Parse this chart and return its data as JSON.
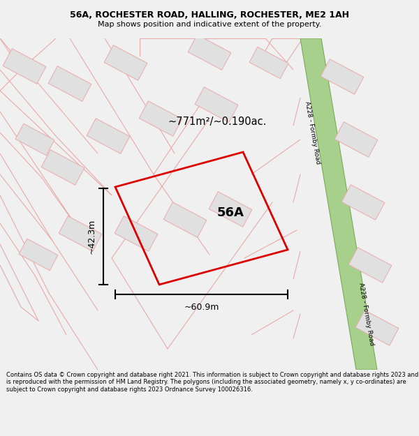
{
  "title_line1": "56A, ROCHESTER ROAD, HALLING, ROCHESTER, ME2 1AH",
  "title_line2": "Map shows position and indicative extent of the property.",
  "footer_text": "Contains OS data © Crown copyright and database right 2021. This information is subject to Crown copyright and database rights 2023 and is reproduced with the permission of HM Land Registry. The polygons (including the associated geometry, namely x, y co-ordinates) are subject to Crown copyright and database rights 2023 Ordnance Survey 100026316.",
  "bg_color": "#f0f0f0",
  "map_bg_color": "#ffffff",
  "road_fill": "#a8d08d",
  "road_border": "#7aaa5a",
  "building_fill": "#e0e0e0",
  "building_stroke": "#e8aaaa",
  "plot_line_color": "#dd0000",
  "plot_line_color2": "#e8aaaa",
  "plot_label": "56A",
  "area_text": "~771m²/~0.190ac.",
  "dim_width_label": "~60.9m",
  "dim_height_label": "~42.3m",
  "road_label": "A228 - Formby Road",
  "title_fontsize": 9.0,
  "subtitle_fontsize": 8.0,
  "footer_fontsize": 6.0
}
